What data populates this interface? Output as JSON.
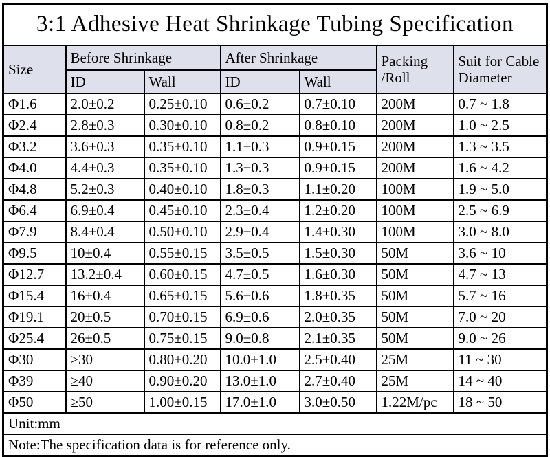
{
  "title": "3:1 Adhesive Heat Shrinkage Tubing Specification",
  "header": {
    "size": "Size",
    "before": "Before Shrinkage",
    "after": "After Shrinkage",
    "before_id": "ID",
    "before_wall": "Wall",
    "after_id": "ID",
    "after_wall": "Wall",
    "packing_line1": "Packing",
    "packing_line2": "/Roll",
    "suit_line1": "Suit for Cable",
    "suit_line2": "Diameter"
  },
  "rows": [
    [
      "Φ1.6",
      "2.0±0.2",
      "0.25±0.10",
      "0.6±0.2",
      "0.7±0.10",
      "200M",
      "0.7 ~ 1.8"
    ],
    [
      "Φ2.4",
      "2.8±0.3",
      "0.30±0.10",
      "0.8±0.2",
      "0.8±0.10",
      "200M",
      "1.0 ~ 2.5"
    ],
    [
      "Φ3.2",
      "3.6±0.3",
      "0.35±0.10",
      "1.1±0.3",
      "0.9±0.15",
      "200M",
      "1.3 ~ 3.5"
    ],
    [
      "Φ4.0",
      "4.4±0.3",
      "0.35±0.10",
      "1.3±0.3",
      "0.9±0.15",
      "200M",
      "1.6 ~ 4.2"
    ],
    [
      "Φ4.8",
      "5.2±0.3",
      "0.40±0.10",
      "1.8±0.3",
      "1.1±0.20",
      "100M",
      "1.9 ~ 5.0"
    ],
    [
      "Φ6.4",
      "6.9±0.4",
      "0.45±0.10",
      "2.3±0.4",
      "1.2±0.20",
      "100M",
      "2.5 ~ 6.9"
    ],
    [
      "Φ7.9",
      "8.4±0.4",
      "0.50±0.10",
      "2.9±0.4",
      "1.4±0.30",
      "100M",
      "3.0 ~ 8.0"
    ],
    [
      "Φ9.5",
      "10±0.4",
      "0.55±0.15",
      "3.5±0.5",
      "1.5±0.30",
      "50M",
      "3.6 ~ 10"
    ],
    [
      "Φ12.7",
      "13.2±0.4",
      "0.60±0.15",
      "4.7±0.5",
      "1.6±0.30",
      "50M",
      "4.7 ~ 13"
    ],
    [
      "Φ15.4",
      "16±0.4",
      "0.65±0.15",
      "5.6±0.6",
      "1.8±0.35",
      "50M",
      "5.7 ~ 16"
    ],
    [
      "Φ19.1",
      "20±0.5",
      "0.70±0.15",
      "6.9±0.6",
      "2.0±0.35",
      "50M",
      "7.0 ~ 20"
    ],
    [
      "Φ25.4",
      "26±0.5",
      "0.75±0.15",
      "9.0±0.8",
      "2.1±0.35",
      "50M",
      "9.0 ~ 26"
    ],
    [
      "Φ30",
      "≥30",
      "0.80±0.20",
      "10.0±1.0",
      "2.5±0.40",
      "25M",
      "11 ~ 30"
    ],
    [
      "Φ39",
      "≥40",
      "0.90±0.20",
      "13.0±1.0",
      "2.7±0.40",
      "25M",
      "14 ~ 40"
    ],
    [
      "Φ50",
      "≥50",
      "1.00±0.15",
      "17.0±1.0",
      "3.0±0.50",
      "1.22M/pc",
      "18 ~ 50"
    ]
  ],
  "footer": {
    "unit": "Unit:mm",
    "note": "Note:The specification data is for reference only."
  },
  "colors": {
    "header_bg": "#dee1eb",
    "border": "#000000",
    "background": "#ffffff",
    "text": "#000000"
  }
}
